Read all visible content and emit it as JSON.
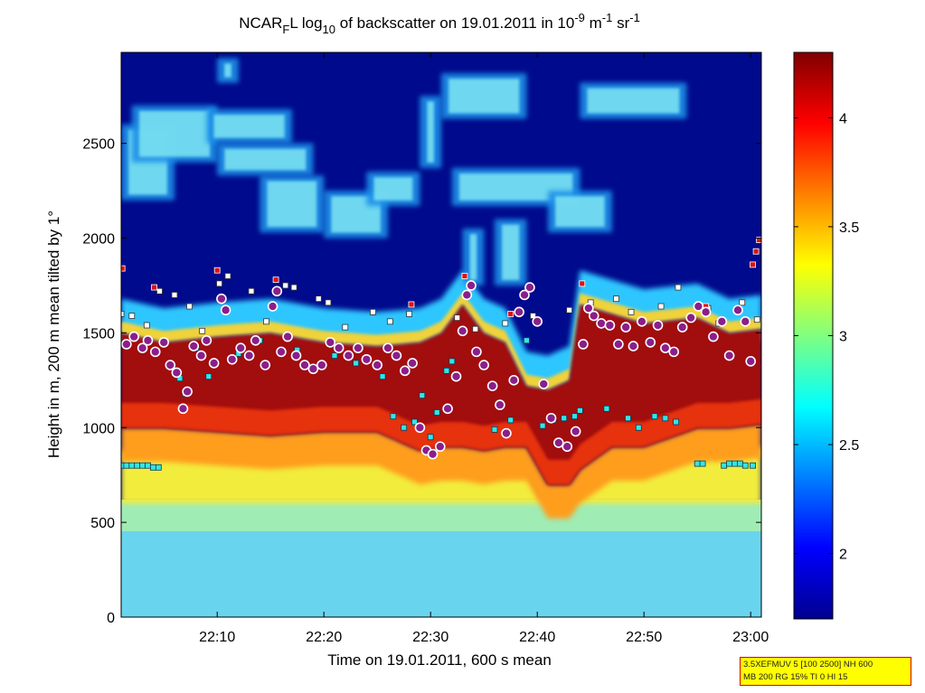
{
  "chart_data": {
    "type": "heatmap",
    "title": {
      "prefix": "NCAR",
      "sub": "F",
      "mid": "L log",
      "sub2": "10",
      "mid2": " of backscatter on 19.01.2011 in 10",
      "exp": "-9",
      "mid3": " m",
      "exp2": "-1",
      "mid4": " sr",
      "exp3": "-1"
    },
    "xlabel": "Time on 19.01.2011, 600 s mean",
    "ylabel": "Height in m, 200 m mean tilted by 1°",
    "xlim_minutes": [
      1.0,
      61.0
    ],
    "x_ticks": [
      {
        "minute": 10,
        "label": "22:10"
      },
      {
        "minute": 20,
        "label": "22:20"
      },
      {
        "minute": 30,
        "label": "22:30"
      },
      {
        "minute": 40,
        "label": "22:40"
      },
      {
        "minute": 50,
        "label": "22:50"
      },
      {
        "minute": 60,
        "label": "23:00"
      }
    ],
    "ylim": [
      0,
      2980
    ],
    "y_ticks": [
      0,
      500,
      1000,
      1500,
      2000,
      2500
    ],
    "colorbar": {
      "range": [
        1.7,
        4.3
      ],
      "ticks": [
        2,
        2.5,
        3,
        3.5,
        4
      ],
      "colormap": "jet"
    },
    "layer_profile": [
      {
        "minute": 1,
        "bottom": 1000,
        "top": 1500
      },
      {
        "minute": 5,
        "bottom": 1000,
        "top": 1450
      },
      {
        "minute": 10,
        "bottom": 980,
        "top": 1480
      },
      {
        "minute": 15,
        "bottom": 960,
        "top": 1500
      },
      {
        "minute": 20,
        "bottom": 980,
        "top": 1450
      },
      {
        "minute": 25,
        "bottom": 980,
        "top": 1430
      },
      {
        "minute": 29,
        "bottom": 880,
        "top": 1450
      },
      {
        "minute": 31,
        "bottom": 900,
        "top": 1500
      },
      {
        "minute": 33,
        "bottom": 900,
        "top": 1650
      },
      {
        "minute": 35,
        "bottom": 880,
        "top": 1500
      },
      {
        "minute": 37,
        "bottom": 900,
        "top": 1450
      },
      {
        "minute": 39,
        "bottom": 900,
        "top": 1220
      },
      {
        "minute": 41,
        "bottom": 700,
        "top": 1200
      },
      {
        "minute": 43,
        "bottom": 700,
        "top": 1250
      },
      {
        "minute": 44,
        "bottom": 780,
        "top": 1650
      },
      {
        "minute": 47,
        "bottom": 900,
        "top": 1600
      },
      {
        "minute": 50,
        "bottom": 900,
        "top": 1550
      },
      {
        "minute": 55,
        "bottom": 1000,
        "top": 1580
      },
      {
        "minute": 58,
        "bottom": 1000,
        "top": 1500
      },
      {
        "minute": 61,
        "bottom": 1020,
        "top": 1520
      }
    ],
    "upper_cloud_patches": [
      {
        "m0": 1,
        "m1": 6,
        "h0": 2200,
        "h1": 2600
      },
      {
        "m0": 2,
        "m1": 10,
        "h0": 2400,
        "h1": 2700
      },
      {
        "m0": 9,
        "m1": 17,
        "h0": 2500,
        "h1": 2680
      },
      {
        "m0": 10,
        "m1": 19,
        "h0": 2330,
        "h1": 2500
      },
      {
        "m0": 14,
        "m1": 20,
        "h0": 2030,
        "h1": 2330
      },
      {
        "m0": 20,
        "m1": 26,
        "h0": 2000,
        "h1": 2250
      },
      {
        "m0": 24,
        "m1": 29,
        "h0": 2170,
        "h1": 2350
      },
      {
        "m0": 29,
        "m1": 31,
        "h0": 2370,
        "h1": 2750
      },
      {
        "m0": 31,
        "m1": 39,
        "h0": 2630,
        "h1": 2870
      },
      {
        "m0": 32,
        "m1": 44,
        "h0": 2170,
        "h1": 2370
      },
      {
        "m0": 41,
        "m1": 47,
        "h0": 2030,
        "h1": 2250
      },
      {
        "m0": 44,
        "m1": 54,
        "h0": 2630,
        "h1": 2820
      },
      {
        "m0": 33,
        "m1": 35,
        "h0": 1750,
        "h1": 2050
      },
      {
        "m0": 36,
        "m1": 39,
        "h0": 1750,
        "h1": 2100
      },
      {
        "m0": 10,
        "m1": 12,
        "h0": 2820,
        "h1": 2950
      }
    ],
    "markers": {
      "circles": [
        [
          1.5,
          1440
        ],
        [
          2.2,
          1480
        ],
        [
          3,
          1420
        ],
        [
          3.5,
          1460
        ],
        [
          4.2,
          1400
        ],
        [
          5,
          1450
        ],
        [
          5.6,
          1330
        ],
        [
          6.2,
          1290
        ],
        [
          6.8,
          1100
        ],
        [
          7.2,
          1190
        ],
        [
          7.8,
          1430
        ],
        [
          8.5,
          1380
        ],
        [
          9,
          1460
        ],
        [
          9.7,
          1340
        ],
        [
          10.4,
          1680
        ],
        [
          10.8,
          1620
        ],
        [
          11.4,
          1360
        ],
        [
          12.2,
          1420
        ],
        [
          13,
          1380
        ],
        [
          13.6,
          1460
        ],
        [
          14.5,
          1330
        ],
        [
          15.2,
          1640
        ],
        [
          15.6,
          1720
        ],
        [
          16,
          1400
        ],
        [
          16.6,
          1480
        ],
        [
          17.4,
          1380
        ],
        [
          18.2,
          1330
        ],
        [
          19,
          1310
        ],
        [
          19.8,
          1330
        ],
        [
          20.6,
          1450
        ],
        [
          21.4,
          1420
        ],
        [
          22.3,
          1380
        ],
        [
          23.2,
          1420
        ],
        [
          24,
          1360
        ],
        [
          25,
          1330
        ],
        [
          26,
          1420
        ],
        [
          26.8,
          1380
        ],
        [
          27.6,
          1300
        ],
        [
          28.3,
          1340
        ],
        [
          29,
          1000
        ],
        [
          29.6,
          880
        ],
        [
          30.2,
          860
        ],
        [
          30.9,
          900
        ],
        [
          31.6,
          1100
        ],
        [
          32.4,
          1270
        ],
        [
          33,
          1510
        ],
        [
          33.4,
          1700
        ],
        [
          33.8,
          1750
        ],
        [
          34.3,
          1400
        ],
        [
          35,
          1330
        ],
        [
          35.8,
          1220
        ],
        [
          36.5,
          1120
        ],
        [
          37.1,
          970
        ],
        [
          37.8,
          1250
        ],
        [
          38.3,
          1610
        ],
        [
          38.8,
          1700
        ],
        [
          39.3,
          1740
        ],
        [
          40,
          1560
        ],
        [
          40.6,
          1230
        ],
        [
          41.3,
          1050
        ],
        [
          42,
          920
        ],
        [
          42.8,
          900
        ],
        [
          43.6,
          980
        ],
        [
          44.3,
          1440
        ],
        [
          44.8,
          1630
        ],
        [
          45.3,
          1590
        ],
        [
          46,
          1550
        ],
        [
          46.8,
          1540
        ],
        [
          47.6,
          1440
        ],
        [
          48.3,
          1530
        ],
        [
          49,
          1430
        ],
        [
          49.8,
          1560
        ],
        [
          50.6,
          1450
        ],
        [
          51.3,
          1540
        ],
        [
          52,
          1420
        ],
        [
          52.8,
          1400
        ],
        [
          53.6,
          1530
        ],
        [
          54.4,
          1580
        ],
        [
          55.1,
          1640
        ],
        [
          55.8,
          1610
        ],
        [
          56.5,
          1480
        ],
        [
          57.3,
          1560
        ],
        [
          58,
          1380
        ],
        [
          58.8,
          1620
        ],
        [
          59.5,
          1560
        ],
        [
          60,
          1350
        ]
      ],
      "squares_cyan": [
        [
          1,
          800
        ],
        [
          1.5,
          800
        ],
        [
          2,
          800
        ],
        [
          2.5,
          800
        ],
        [
          3,
          800
        ],
        [
          3.5,
          800
        ],
        [
          4,
          790
        ],
        [
          4.5,
          790
        ],
        [
          6.5,
          1260
        ],
        [
          7,
          1180
        ],
        [
          8,
          1420
        ],
        [
          9.2,
          1270
        ],
        [
          12,
          1390
        ],
        [
          14,
          1460
        ],
        [
          17.5,
          1410
        ],
        [
          21,
          1380
        ],
        [
          23,
          1340
        ],
        [
          25.5,
          1270
        ],
        [
          26.5,
          1060
        ],
        [
          27.5,
          1000
        ],
        [
          28.5,
          1030
        ],
        [
          29.2,
          1170
        ],
        [
          30,
          950
        ],
        [
          30.6,
          1080
        ],
        [
          31.5,
          1300
        ],
        [
          32,
          1350
        ],
        [
          36,
          990
        ],
        [
          37.5,
          1040
        ],
        [
          39,
          1460
        ],
        [
          40.5,
          1010
        ],
        [
          41.5,
          1040
        ],
        [
          42.5,
          1050
        ],
        [
          43.5,
          1060
        ],
        [
          44,
          1090
        ],
        [
          46.5,
          1100
        ],
        [
          48.5,
          1050
        ],
        [
          49.5,
          1000
        ],
        [
          51,
          1060
        ],
        [
          52,
          1050
        ],
        [
          53,
          1030
        ],
        [
          55,
          810
        ],
        [
          55.5,
          810
        ],
        [
          57.5,
          800
        ],
        [
          58,
          810
        ],
        [
          58.5,
          810
        ],
        [
          59,
          810
        ],
        [
          59.5,
          800
        ],
        [
          60.2,
          800
        ]
      ],
      "squares_white": [
        [
          1,
          1600
        ],
        [
          2,
          1590
        ],
        [
          3.4,
          1540
        ],
        [
          4.6,
          1720
        ],
        [
          6,
          1700
        ],
        [
          7.4,
          1640
        ],
        [
          8.6,
          1510
        ],
        [
          10.2,
          1760
        ],
        [
          11,
          1800
        ],
        [
          13.2,
          1720
        ],
        [
          14.6,
          1560
        ],
        [
          16.4,
          1750
        ],
        [
          17.2,
          1740
        ],
        [
          19.5,
          1680
        ],
        [
          20.4,
          1660
        ],
        [
          22,
          1530
        ],
        [
          24.6,
          1610
        ],
        [
          26.2,
          1560
        ],
        [
          28,
          1600
        ],
        [
          32.5,
          1580
        ],
        [
          34.2,
          1520
        ],
        [
          37,
          1550
        ],
        [
          39.6,
          1590
        ],
        [
          43,
          1620
        ],
        [
          45,
          1660
        ],
        [
          47.4,
          1680
        ],
        [
          48.8,
          1610
        ],
        [
          51.6,
          1640
        ],
        [
          53.2,
          1740
        ],
        [
          56,
          1630
        ],
        [
          57,
          1550
        ],
        [
          59.2,
          1660
        ],
        [
          60.6,
          1570
        ]
      ],
      "squares_red": [
        [
          1.1,
          1840
        ],
        [
          4.1,
          1740
        ],
        [
          10,
          1830
        ],
        [
          15.5,
          1780
        ],
        [
          28.2,
          1650
        ],
        [
          33.2,
          1800
        ],
        [
          37.5,
          1600
        ],
        [
          44.2,
          1760
        ],
        [
          55.8,
          1640
        ],
        [
          60.5,
          1930
        ],
        [
          60.8,
          1990
        ],
        [
          60.2,
          1860
        ]
      ]
    }
  },
  "info_box": {
    "line1": "3.5XEFMUV 5 [100 2500] NH 600",
    "line2": "MB 200 RG 15% TI 0 HI 15"
  },
  "colors": {
    "background_clear": "#000a8c",
    "marker_circle_face": "#8a1f8a",
    "marker_circle_edge": "#ffffff",
    "marker_cyan": "#33e5e5",
    "marker_white": "#ffffff",
    "marker_red": "#dd1111"
  }
}
